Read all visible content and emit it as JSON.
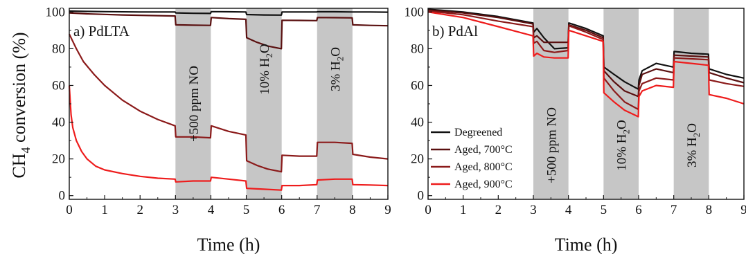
{
  "chart_data": [
    {
      "type": "line",
      "panel_label": "a) PdLTA",
      "xlabel": "Time (h)",
      "ylabel": "CH4 conversion (%)",
      "xlim": [
        0,
        9
      ],
      "ylim": [
        -2,
        102
      ],
      "x_ticks": [
        0,
        1,
        2,
        3,
        4,
        5,
        6,
        7,
        8,
        9
      ],
      "y_ticks": [
        0,
        20,
        40,
        60,
        80,
        100
      ],
      "grid": false,
      "shaded_regions": [
        {
          "x0": 3,
          "x1": 4,
          "label": "+500 ppm NO"
        },
        {
          "x0": 5,
          "x1": 6,
          "label": "10% H2O"
        },
        {
          "x0": 7,
          "x1": 8,
          "label": "3% H2O"
        }
      ],
      "series": [
        {
          "color": "#111111",
          "x": [
            0,
            0.5,
            1,
            2,
            2.99,
            3.01,
            3.5,
            3.99,
            4.01,
            4.5,
            4.99,
            5.01,
            5.5,
            5.99,
            6.01,
            6.5,
            6.99,
            7.01,
            7.5,
            7.99,
            8.01,
            8.5,
            9
          ],
          "y": [
            100.5,
            100.3,
            100.2,
            100,
            100,
            99.5,
            99.3,
            99.2,
            100.2,
            100.1,
            100,
            98.6,
            98.4,
            98.3,
            100,
            100,
            100,
            100.1,
            100.1,
            100,
            100,
            100,
            99.9
          ]
        },
        {
          "color": "#5a1010",
          "x": [
            0,
            0.5,
            1,
            1.5,
            2,
            2.5,
            2.99,
            3.01,
            3.5,
            3.99,
            4.01,
            4.5,
            4.99,
            5.01,
            5.3,
            5.6,
            5.99,
            6.01,
            6.5,
            6.99,
            7.01,
            7.5,
            7.99,
            8.01,
            8.5,
            9
          ],
          "y": [
            99.5,
            99,
            98.7,
            98.4,
            98.2,
            98,
            97.8,
            93,
            92.8,
            92.7,
            97,
            96.4,
            96,
            86,
            83.5,
            81.5,
            80,
            95.5,
            95.4,
            95.3,
            97,
            96.9,
            96.8,
            93,
            92.7,
            92.5
          ]
        },
        {
          "color": "#8b1a1a",
          "x": [
            0,
            0.2,
            0.4,
            0.7,
            1,
            1.5,
            2,
            2.5,
            2.99,
            3.01,
            3.5,
            3.99,
            4.01,
            4.5,
            4.99,
            5.01,
            5.3,
            5.6,
            5.99,
            6.01,
            6.5,
            6.99,
            7.01,
            7.5,
            7.99,
            8.01,
            8.5,
            9
          ],
          "y": [
            88,
            80,
            73,
            66,
            60,
            52,
            46,
            41.5,
            38,
            32,
            32,
            31.5,
            38,
            35,
            33,
            19,
            16.5,
            14.5,
            13,
            22,
            21.5,
            21.5,
            29,
            29,
            28.5,
            22.5,
            21,
            20
          ]
        },
        {
          "color": "#ee1c1c",
          "x": [
            0,
            0.05,
            0.1,
            0.2,
            0.35,
            0.5,
            0.75,
            1,
            1.5,
            2,
            2.5,
            2.99,
            3.01,
            3.5,
            3.99,
            4.01,
            4.5,
            4.99,
            5.01,
            5.5,
            5.99,
            6.01,
            6.5,
            6.99,
            7.01,
            7.5,
            7.99,
            8.01,
            8.5,
            9
          ],
          "y": [
            60,
            44,
            37,
            30,
            24,
            20,
            16,
            14,
            12,
            10.5,
            9.5,
            9,
            7.5,
            8,
            8,
            10,
            9,
            8,
            4,
            3.5,
            3,
            5.5,
            5.5,
            6,
            8.5,
            9,
            9,
            6,
            5.8,
            5.5
          ]
        }
      ]
    },
    {
      "type": "line",
      "panel_label": "b) PdAl",
      "xlabel": "Time (h)",
      "ylabel": "",
      "xlim": [
        0,
        9
      ],
      "ylim": [
        -2,
        102
      ],
      "x_ticks": [
        0,
        1,
        2,
        3,
        4,
        5,
        6,
        7,
        8,
        9
      ],
      "y_ticks": [
        0,
        20,
        40,
        60,
        80,
        100
      ],
      "grid": false,
      "legend_position": "lower-left",
      "shaded_regions": [
        {
          "x0": 3,
          "x1": 4,
          "label": "+500 ppm NO"
        },
        {
          "x0": 5,
          "x1": 6,
          "label": "10% H2O"
        },
        {
          "x0": 7,
          "x1": 8,
          "label": "3% H2O"
        }
      ],
      "series": [
        {
          "name": "Degreened",
          "color": "#111111",
          "x": [
            0,
            1,
            2,
            2.99,
            3.01,
            3.1,
            3.3,
            3.6,
            3.99,
            4.01,
            4.5,
            4.99,
            5.01,
            5.3,
            5.6,
            5.99,
            6.01,
            6.1,
            6.5,
            6.99,
            7.01,
            7.5,
            7.99,
            8.01,
            8.5,
            9
          ],
          "y": [
            101.5,
            100,
            97.5,
            94,
            89,
            91,
            86,
            80,
            80.5,
            94,
            91,
            87,
            70,
            66,
            62,
            58,
            63,
            68,
            72,
            70,
            78.5,
            77.5,
            77,
            69,
            66,
            64
          ]
        },
        {
          "name": "Aged, 700°C",
          "color": "#5a1010",
          "x": [
            0,
            1,
            2,
            2.99,
            3.01,
            3.1,
            3.3,
            3.6,
            3.99,
            4.01,
            4.5,
            4.99,
            5.01,
            5.3,
            5.6,
            5.99,
            6.01,
            6.1,
            6.5,
            6.99,
            7.01,
            7.5,
            7.99,
            8.01,
            8.5,
            9
          ],
          "y": [
            101,
            99.5,
            97,
            93.5,
            86,
            87,
            83.5,
            83.5,
            83.5,
            93,
            90,
            86,
            68,
            62,
            57,
            54,
            60,
            66,
            69,
            67,
            76.5,
            76,
            75.5,
            67,
            64,
            61.5
          ]
        },
        {
          "name": "Aged, 800°C",
          "color": "#8b1a1a",
          "x": [
            0,
            1,
            2,
            2.99,
            3.01,
            3.1,
            3.3,
            3.6,
            3.99,
            4.01,
            4.5,
            4.99,
            5.01,
            5.3,
            5.6,
            5.99,
            6.01,
            6.1,
            6.5,
            6.99,
            7.01,
            7.5,
            7.99,
            8.01,
            8.5,
            9
          ],
          "y": [
            100.5,
            98.5,
            95,
            92,
            83,
            84,
            79,
            78,
            79,
            92.5,
            89,
            85,
            64,
            57,
            51,
            47,
            57,
            61,
            64,
            63,
            75,
            74.5,
            74,
            63,
            61,
            59.5
          ]
        },
        {
          "name": "Aged, 900°C",
          "color": "#ee1c1c",
          "x": [
            0,
            1,
            2,
            2.99,
            3.01,
            3.1,
            3.3,
            3.6,
            3.99,
            4.01,
            4.5,
            4.99,
            5.01,
            5.3,
            5.6,
            5.99,
            6.01,
            6.1,
            6.5,
            6.99,
            7.01,
            7.5,
            7.99,
            8.01,
            8.5,
            9
          ],
          "y": [
            100,
            97,
            92,
            87,
            76,
            77.5,
            75.5,
            75,
            75,
            90,
            87,
            84,
            56,
            51,
            46.5,
            43,
            54,
            57,
            60,
            59,
            73,
            72,
            71,
            55,
            53,
            50
          ]
        }
      ]
    }
  ]
}
